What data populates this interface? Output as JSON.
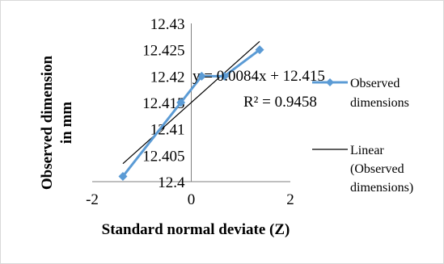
{
  "chart_data": {
    "type": "scatter",
    "xlabel": "Standard normal deviate (Z)",
    "ylabel_lines": [
      "Observed dimension",
      "in mm"
    ],
    "xlim": [
      -2,
      2
    ],
    "ylim": [
      12.4,
      12.43
    ],
    "x_ticks": [
      -2,
      0,
      2
    ],
    "x_tick_labels": [
      "-2",
      "0",
      "2"
    ],
    "y_ticks": [
      12.4,
      12.405,
      12.41,
      12.415,
      12.42,
      12.425,
      12.43
    ],
    "y_tick_labels": [
      "12.4",
      "12.405",
      "12.41",
      "12.415",
      "12.42",
      "12.425",
      "12.43"
    ],
    "grid": false,
    "legend_position": "right",
    "series": [
      {
        "name": "Observed dimensions",
        "color": "#5b9bd5",
        "marker": "diamond",
        "x": [
          -1.38,
          -0.21,
          0.21,
          0.67,
          1.38
        ],
        "y": [
          12.401,
          12.415,
          12.42,
          12.42,
          12.425
        ]
      }
    ],
    "trendline": {
      "name": "Linear (Observed dimensions)",
      "legend_lines": [
        "Linear",
        "(Observed",
        "dimensions)"
      ],
      "color": "#000000",
      "slope": 0.0084,
      "intercept": 12.415,
      "x_range": [
        -1.38,
        1.38
      ]
    },
    "legend_series_lines": [
      "Observed",
      "dimensions"
    ],
    "annotations": {
      "equation": "y = 0.0084x + 12.415",
      "r_squared": "R² = 0.9458"
    }
  }
}
